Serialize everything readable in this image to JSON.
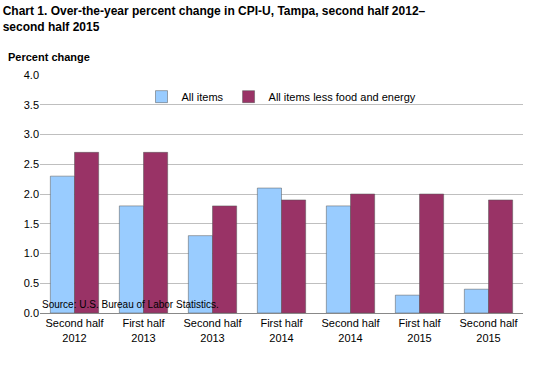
{
  "chart_data": {
    "type": "bar",
    "title": "Chart 1. Over-the-year percent change in CPI-U, Tampa, second half 2012–\nsecond half 2015",
    "y_label": "Percent change",
    "source": "Source: U.S. Bureau of Labor Statistics.",
    "categories": [
      "Second half\n2012",
      "First half\n2013",
      "Second half\n2013",
      "First half\n2014",
      "Second half\n2014",
      "First half\n2015",
      "Second half\n2015"
    ],
    "series": [
      {
        "name": "All items",
        "color": "#99ccff",
        "values": [
          2.3,
          1.8,
          1.3,
          2.1,
          1.8,
          0.3,
          0.4
        ]
      },
      {
        "name": "All items less food and energy",
        "color": "#993366",
        "values": [
          2.7,
          2.7,
          1.8,
          1.9,
          2.0,
          2.0,
          1.9
        ]
      }
    ],
    "ylim": [
      0,
      4
    ],
    "yticks": [
      {
        "value": 0,
        "label": "0.0"
      },
      0.5,
      {
        "value": 1,
        "label": "1.0"
      },
      1.5,
      {
        "value": 2,
        "label": "2.0"
      },
      2.5,
      {
        "value": 3,
        "label": "3.0"
      },
      3.5,
      {
        "value": 4,
        "label": "4.0"
      }
    ],
    "grid": true,
    "legend": "top"
  }
}
